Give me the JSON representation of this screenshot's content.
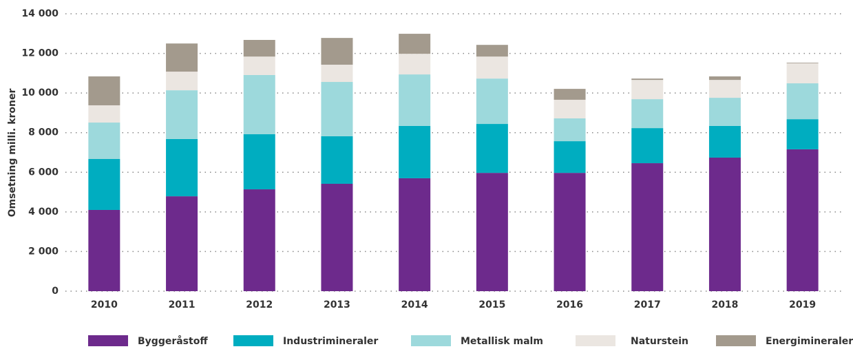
{
  "chart_data": {
    "type": "stacked_bar",
    "y_label": "Omsetning milli. kroner",
    "categories": [
      "2010",
      "2011",
      "2012",
      "2013",
      "2014",
      "2015",
      "2016",
      "2017",
      "2018",
      "2019"
    ],
    "series": [
      {
        "name": "Byggeråstoff",
        "color": "#6d2a8c",
        "values": [
          4100,
          4790,
          5140,
          5420,
          5700,
          5970,
          5970,
          6460,
          6740,
          7160
        ]
      },
      {
        "name": "Industrimineraler",
        "color": "#00adc0",
        "values": [
          2570,
          2890,
          2780,
          2400,
          2640,
          2470,
          1600,
          1770,
          1600,
          1520
        ]
      },
      {
        "name": "Metallisk malm",
        "color": "#9dd9dc",
        "values": [
          1840,
          2460,
          2990,
          2740,
          2600,
          2290,
          1150,
          1460,
          1420,
          1810
        ]
      },
      {
        "name": "Naturstein",
        "color": "#ebe6e1",
        "values": [
          870,
          940,
          930,
          870,
          1040,
          1110,
          940,
          970,
          900,
          1010
        ]
      },
      {
        "name": "Energimineraler",
        "color": "#a39a8d",
        "values": [
          1460,
          1420,
          840,
          1350,
          1010,
          590,
          550,
          70,
          180,
          30
        ]
      }
    ],
    "ylim": [
      0,
      14000
    ],
    "yticks": [
      0,
      {
        "value": 2000,
        "label": "2 000"
      },
      {
        "value": 4000,
        "label": "4 000"
      },
      {
        "value": 6000,
        "label": "6 000"
      },
      {
        "value": 8000,
        "label": "8 000"
      },
      {
        "value": 10000,
        "label": "10 000"
      },
      {
        "value": 12000,
        "label": "12 000"
      },
      {
        "value": 14000,
        "label": "14 000"
      }
    ],
    "grid": true,
    "legend": "bottom"
  }
}
